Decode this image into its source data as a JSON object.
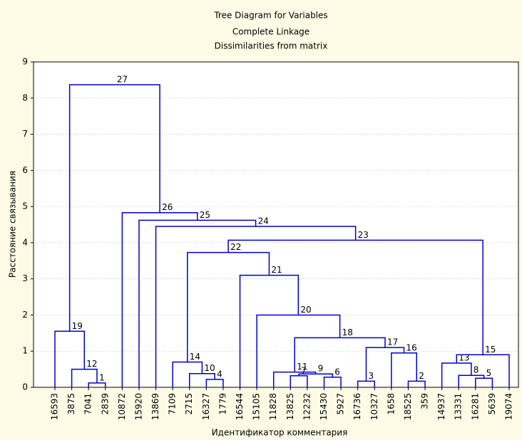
{
  "chart_data": {
    "type": "dendrogram",
    "title": "Tree Diagram for  Variables",
    "subtitle": [
      "Complete Linkage",
      "Dissimilarities from matrix"
    ],
    "xlabel": "Идентификатор комментария",
    "ylabel": "Расстояние связывания",
    "categories": [
      "16593",
      "3875",
      "7041",
      "2839",
      "10872",
      "15920",
      "13869",
      "7109",
      "2715",
      "16327",
      "1779",
      "16544",
      "15105",
      "11828",
      "13825",
      "12232",
      "15430",
      "5927",
      "16736",
      "10327",
      "1658",
      "18525",
      "359",
      "14937",
      "13331",
      "16281",
      "5639",
      "19074"
    ],
    "merges": [
      {
        "label": 1,
        "height": 0.12,
        "left": "7041",
        "right": "2839"
      },
      {
        "label": 2,
        "height": 0.17,
        "left": "18525",
        "right": "359"
      },
      {
        "label": 3,
        "height": 0.17,
        "left": "16736",
        "right": "10327"
      },
      {
        "label": 4,
        "height": 0.22,
        "left": "16327",
        "right": "1779"
      },
      {
        "label": 5,
        "height": 0.25,
        "left": "16281",
        "right": "5639"
      },
      {
        "label": 6,
        "height": 0.28,
        "left": "15430",
        "right": "5927"
      },
      {
        "label": 7,
        "height": 0.32,
        "left": "13825",
        "right": "12232"
      },
      {
        "label": 8,
        "height": 0.33,
        "left": "13331",
        "right": 5
      },
      {
        "label": 9,
        "height": 0.37,
        "left": 7,
        "right": 6
      },
      {
        "label": 10,
        "height": 0.38,
        "left": "2715",
        "right": 4
      },
      {
        "label": 11,
        "height": 0.42,
        "left": "11828",
        "right": 9
      },
      {
        "label": 12,
        "height": 0.5,
        "left": "3875",
        "right": 1
      },
      {
        "label": 13,
        "height": 0.67,
        "left": "14937",
        "right": 8
      },
      {
        "label": 14,
        "height": 0.7,
        "left": "7109",
        "right": 10
      },
      {
        "label": 15,
        "height": 0.9,
        "left": 13,
        "right": "19074"
      },
      {
        "label": 16,
        "height": 0.95,
        "left": "1658",
        "right": 2
      },
      {
        "label": 17,
        "height": 1.1,
        "left": 3,
        "right": 16
      },
      {
        "label": 18,
        "height": 1.37,
        "left": 11,
        "right": 17
      },
      {
        "label": 19,
        "height": 1.55,
        "left": "16593",
        "right": 12
      },
      {
        "label": 20,
        "height": 2.0,
        "left": "15105",
        "right": 18
      },
      {
        "label": 21,
        "height": 3.1,
        "left": "16544",
        "right": 20
      },
      {
        "label": 22,
        "height": 3.73,
        "left": 14,
        "right": 21
      },
      {
        "label": 23,
        "height": 4.07,
        "left": 22,
        "right": 15
      },
      {
        "label": 24,
        "height": 4.45,
        "left": "13869",
        "right": 23
      },
      {
        "label": 25,
        "height": 4.62,
        "left": "15920",
        "right": 24
      },
      {
        "label": 26,
        "height": 4.83,
        "left": "10872",
        "right": 25
      },
      {
        "label": 27,
        "height": 8.37,
        "left": 19,
        "right": 26
      }
    ],
    "color": "#0000cc",
    "ylim": [
      0,
      9
    ],
    "yticks": [
      0,
      1,
      2,
      3,
      4,
      5,
      6,
      7,
      8,
      9
    ],
    "grid": true
  }
}
